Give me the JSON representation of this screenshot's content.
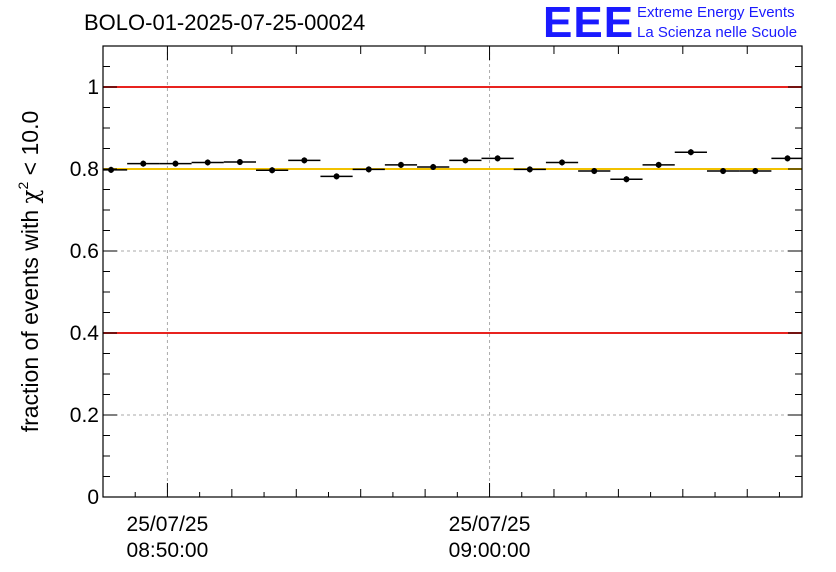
{
  "header": {
    "title": "BOLO-01-2025-07-25-00024",
    "logo_mark": "EEE",
    "logo_line1": "Extreme Energy Events",
    "logo_line2": "La Scienza nelle Scuole"
  },
  "colors": {
    "threshold_lines": "#e8231f",
    "reference_line": "#f2c200",
    "grid": "#aaaaaa",
    "markers": "#000000",
    "logo": "#1a1aff"
  },
  "chart_data": {
    "type": "scatter",
    "title": "BOLO-01-2025-07-25-00024",
    "ylabel_prefix": "fraction of events with ",
    "ylabel_symbol": "χ",
    "ylabel_sup": "2",
    "ylabel_suffix": " < 10.0",
    "xlabel": "",
    "ylim": [
      0,
      1.1
    ],
    "yticks": [
      0,
      0.2,
      0.4,
      0.6,
      0.8,
      1
    ],
    "ytick_labels": [
      "0",
      "0.2",
      "0.4",
      "0.6",
      "0.8",
      "1"
    ],
    "xlim_minutes": [
      0,
      21.7
    ],
    "x_major_ticks": [
      {
        "minute": 2.0,
        "date": "25/07/25",
        "time": "08:50:00"
      },
      {
        "minute": 12.0,
        "date": "25/07/25",
        "time": "09:00:00"
      }
    ],
    "x_minor_step_minutes": 2,
    "x_start_minute_is": "08:48:00",
    "grid": true,
    "horizontal_lines": [
      {
        "y": 1.0,
        "color": "red"
      },
      {
        "y": 0.8,
        "color": "yellow"
      },
      {
        "y": 0.4,
        "color": "red"
      }
    ],
    "bin_width_minutes": 1.0,
    "points": [
      {
        "x": 0.25,
        "y": 0.798
      },
      {
        "x": 1.25,
        "y": 0.813
      },
      {
        "x": 2.25,
        "y": 0.813
      },
      {
        "x": 3.25,
        "y": 0.816
      },
      {
        "x": 4.25,
        "y": 0.817
      },
      {
        "x": 5.25,
        "y": 0.797
      },
      {
        "x": 6.25,
        "y": 0.821
      },
      {
        "x": 7.25,
        "y": 0.782
      },
      {
        "x": 8.25,
        "y": 0.799
      },
      {
        "x": 9.25,
        "y": 0.81
      },
      {
        "x": 10.25,
        "y": 0.805
      },
      {
        "x": 11.25,
        "y": 0.821
      },
      {
        "x": 12.25,
        "y": 0.826
      },
      {
        "x": 13.25,
        "y": 0.799
      },
      {
        "x": 14.25,
        "y": 0.816
      },
      {
        "x": 15.25,
        "y": 0.795
      },
      {
        "x": 16.25,
        "y": 0.775
      },
      {
        "x": 17.25,
        "y": 0.81
      },
      {
        "x": 18.25,
        "y": 0.841
      },
      {
        "x": 19.25,
        "y": 0.795
      },
      {
        "x": 20.25,
        "y": 0.795
      },
      {
        "x": 21.25,
        "y": 0.826
      }
    ]
  }
}
